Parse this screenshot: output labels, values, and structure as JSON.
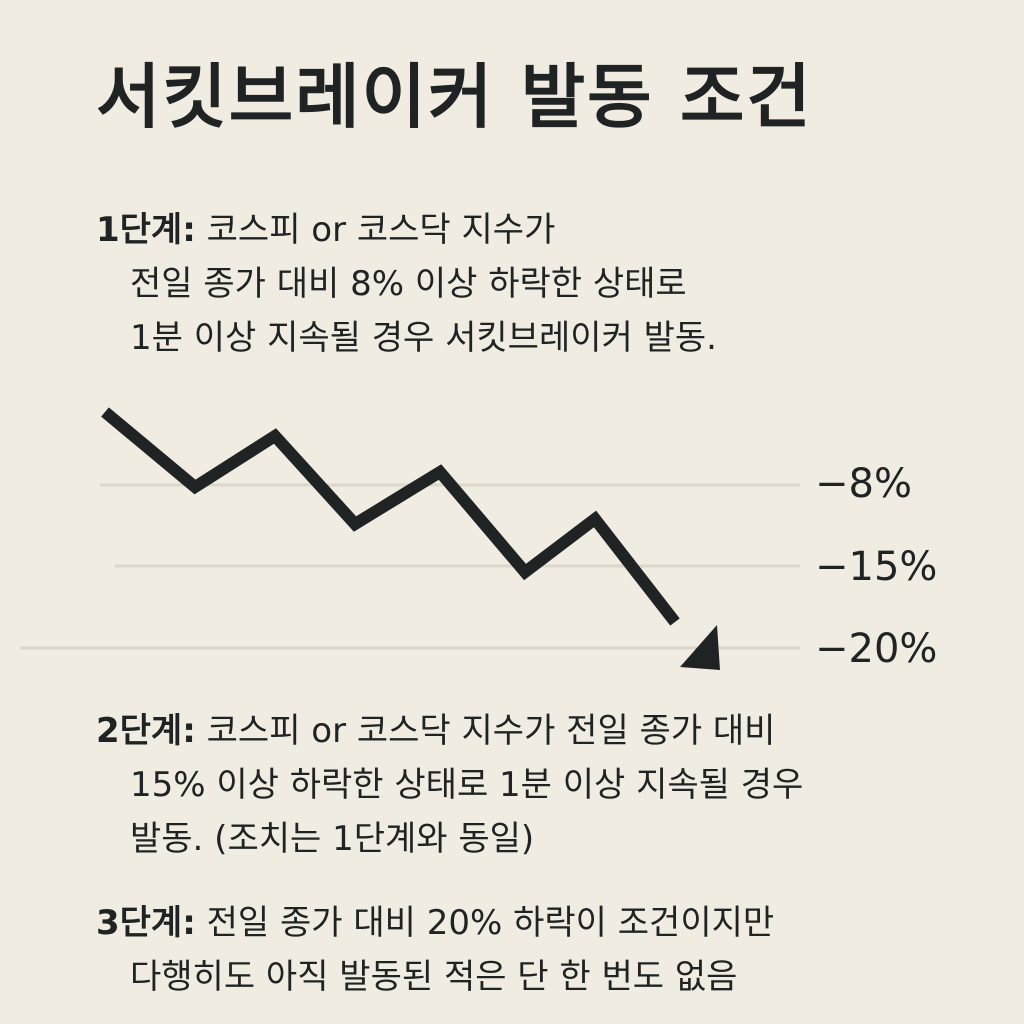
{
  "title": "서킷브레이커 발동 조건",
  "steps": [
    {
      "label": "1단계:",
      "lines": [
        "코스피 or 코스닥 지수가",
        "전일 종가 대비 8% 이상 하락한 상태로",
        "1분 이상 지속될 경우 서킷브레이커 발동."
      ]
    },
    {
      "label": "2단계:",
      "lines": [
        "코스피 or 코스닥 지수가 전일 종가 대비",
        "15% 이상 하락한 상태로 1분 이상 지속될 경우",
        "발동. (조치는 1단계와 동일)"
      ]
    },
    {
      "label": "3단계:",
      "lines": [
        "전일 종가 대비 20% 하락이 조건이지만",
        "다행히도 아직 발동된 적은 단 한 번도 없음"
      ]
    }
  ],
  "chart": {
    "levels": [
      "−8%",
      "−15%",
      "−20%"
    ],
    "line_color": "#1f2323",
    "gridline_color": "#dcd6cb"
  }
}
